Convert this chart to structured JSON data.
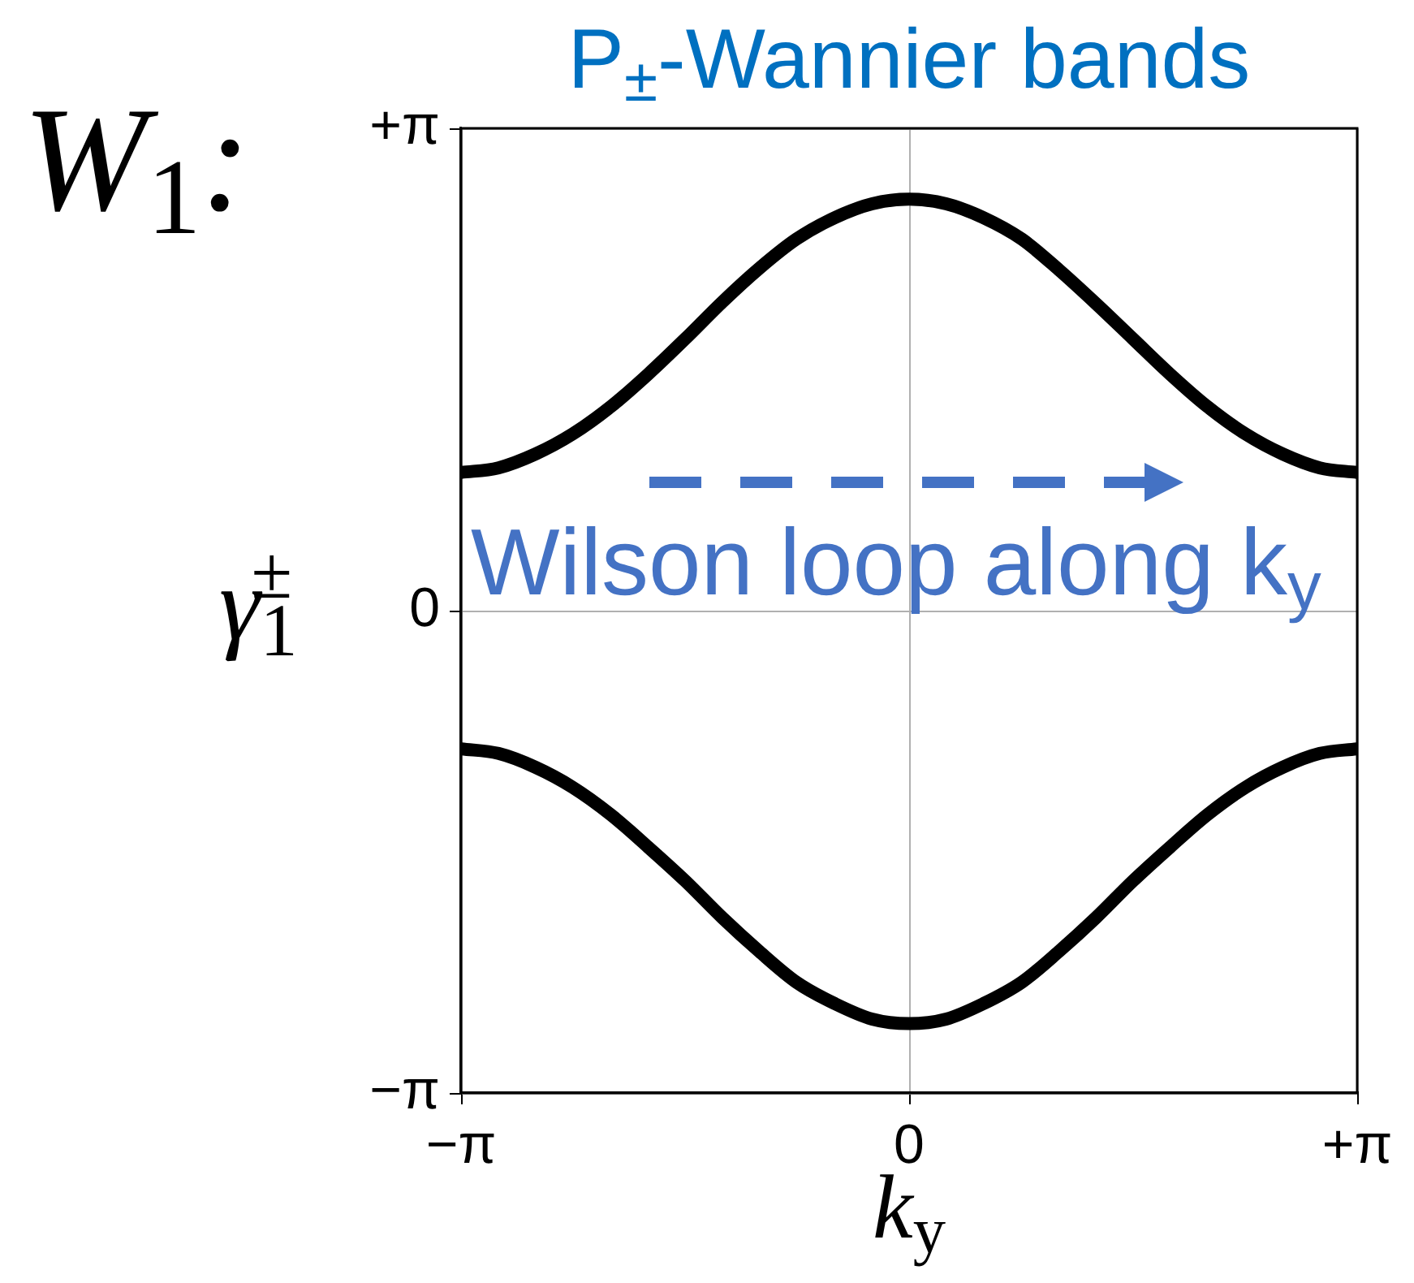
{
  "chart_data": {
    "type": "line",
    "title": "P$_{±}$-Wannier bands",
    "xlabel": "k$_{y}$",
    "ylabel": "γ$_{1}$$^{±}$",
    "annotations": [
      "W$_{1}$:",
      "Wilson loop along k$_{y}$"
    ],
    "x": [
      -3.1416,
      -2.88,
      -2.62,
      -2.36,
      -2.09,
      -1.83,
      -1.57,
      -1.31,
      -1.05,
      -0.79,
      -0.52,
      -0.26,
      0,
      0.26,
      0.52,
      0.79,
      1.05,
      1.31,
      1.57,
      1.83,
      2.09,
      2.36,
      2.62,
      2.88,
      3.1416
    ],
    "series": [
      {
        "color": "#000000",
        "values": [
          0.9,
          0.93,
          1.02,
          1.15,
          1.33,
          1.54,
          1.77,
          2.01,
          2.23,
          2.42,
          2.56,
          2.65,
          2.68,
          2.65,
          2.56,
          2.42,
          2.22,
          2.0,
          1.77,
          1.54,
          1.33,
          1.15,
          1.02,
          0.93,
          0.9
        ]
      },
      {
        "color": "#000000",
        "values": [
          -0.9,
          -0.93,
          -1.02,
          -1.15,
          -1.33,
          -1.54,
          -1.76,
          -2.0,
          -2.22,
          -2.42,
          -2.56,
          -2.66,
          -2.69,
          -2.66,
          -2.56,
          -2.42,
          -2.22,
          -2.0,
          -1.76,
          -1.54,
          -1.33,
          -1.15,
          -1.02,
          -0.93,
          -0.9
        ]
      }
    ],
    "xlim": [
      -3.1416,
      3.1416
    ],
    "ylim": [
      -3.1416,
      3.1416
    ],
    "xticks": [
      {
        "value": -3.1416,
        "label": "−π"
      },
      0,
      {
        "value": 3.1416,
        "label": "+π"
      }
    ],
    "yticks": [
      {
        "value": -3.1416,
        "label": "−π"
      },
      0,
      {
        "value": 3.1416,
        "label": "+π"
      }
    ],
    "grid": true
  }
}
